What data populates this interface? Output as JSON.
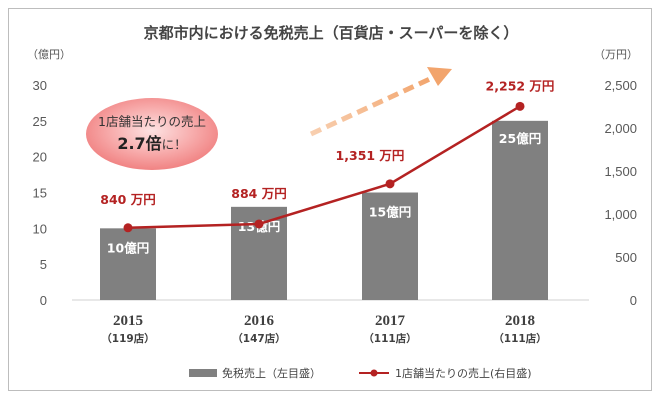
{
  "chart_data": {
    "type": "bar+line",
    "title": "京都市内における免税売上（百貨店・スーパーを除く）",
    "y_left_unit": "（億円）",
    "y_right_unit": "（万円）",
    "y_left_ticks": [
      "0",
      "5",
      "10",
      "15",
      "20",
      "25",
      "30"
    ],
    "y_right_ticks": [
      "0",
      "500",
      "1,000",
      "1,500",
      "2,000",
      "2,500"
    ],
    "ylim_left": [
      0,
      30
    ],
    "ylim_right": [
      0,
      2500
    ],
    "categories": [
      "2015",
      "2016",
      "2017",
      "2018"
    ],
    "category_sublabels": [
      "（119店）",
      "（147店）",
      "（111店）",
      "（111店）"
    ],
    "series": [
      {
        "name": "免税売上（左目盛）",
        "type": "bar",
        "axis": "left",
        "values": [
          10,
          13,
          15,
          25
        ],
        "labels": [
          "10億円",
          "13億円",
          "15億円",
          "25億円"
        ],
        "color": "#808080"
      },
      {
        "name": "1店舗当たりの売上(右目盛)",
        "type": "line",
        "axis": "right",
        "values": [
          840,
          884,
          1351,
          2252
        ],
        "labels": [
          "840 万円",
          "884 万円",
          "1,351 万円",
          "2,252 万円"
        ],
        "color": "#b42222"
      }
    ],
    "annotation": {
      "line1": "1店舗当たりの売上",
      "line2_value": "2.7倍",
      "line2_suffix": "に！"
    },
    "trend_arrow_color": "#f4b183",
    "bubble_color": "#f08080"
  }
}
